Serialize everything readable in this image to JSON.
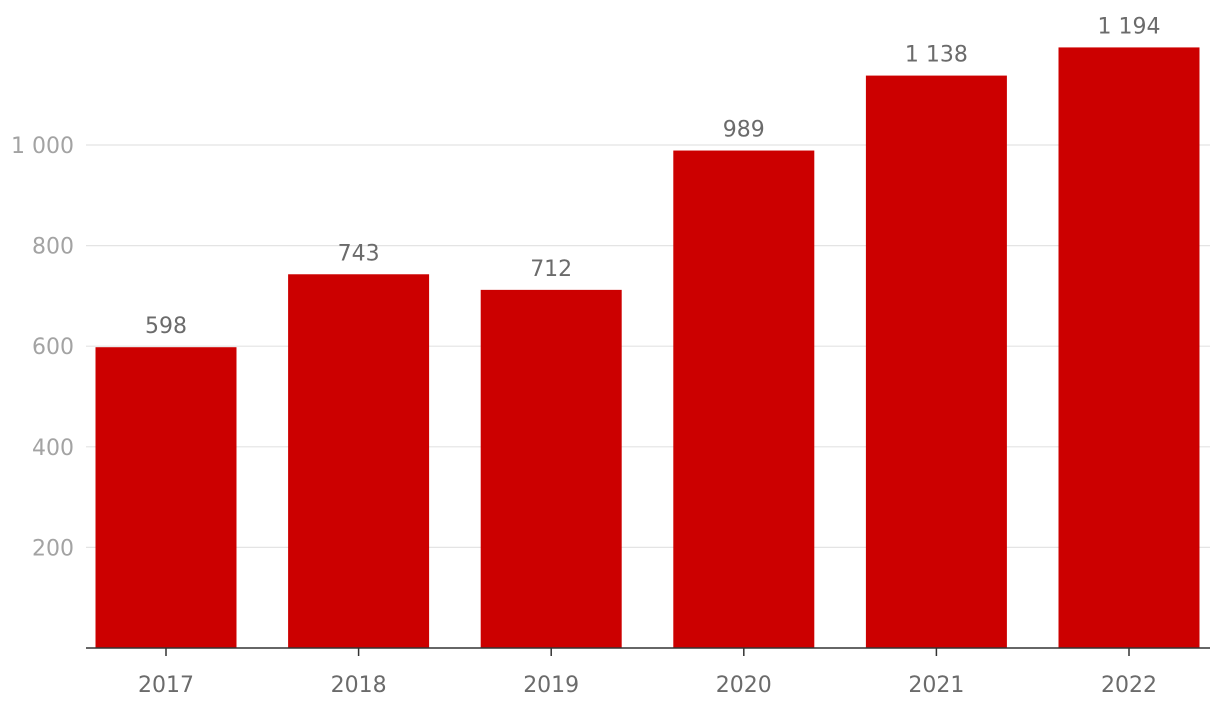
{
  "chart_data": {
    "type": "bar",
    "categories": [
      "2017",
      "2018",
      "2019",
      "2020",
      "2021",
      "2022"
    ],
    "values": [
      598,
      743,
      712,
      989,
      1138,
      1194
    ],
    "value_labels": [
      "598",
      "743",
      "712",
      "989",
      "1 138",
      "1 194"
    ],
    "y_ticks": [
      200,
      400,
      600,
      800,
      1000
    ],
    "y_tick_labels": [
      "200",
      "400",
      "600",
      "800",
      "1 000"
    ],
    "ylim": [
      0,
      1250
    ],
    "title": "",
    "xlabel": "",
    "ylabel": "",
    "grid": true,
    "colors": {
      "bar": "#cc0000"
    }
  }
}
